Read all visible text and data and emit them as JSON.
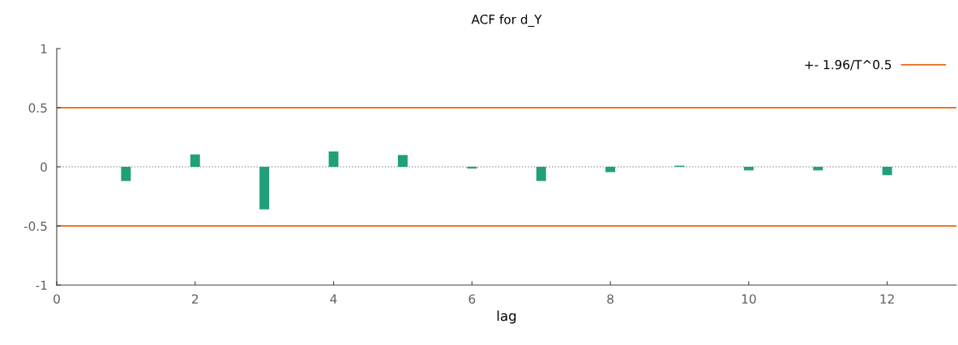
{
  "chart_data": {
    "type": "bar",
    "title": "ACF for d_Y",
    "xlabel": "lag",
    "x": [
      1,
      2,
      3,
      4,
      5,
      6,
      7,
      8,
      9,
      10,
      11,
      12
    ],
    "series": [
      {
        "color": "#1fa07a",
        "values": [
          -0.12,
          0.105,
          -0.36,
          0.13,
          0.1,
          -0.015,
          -0.12,
          -0.045,
          0.01,
          -0.03,
          -0.03,
          -0.07
        ]
      }
    ],
    "xlim": [
      0,
      13
    ],
    "xticks": [
      0,
      2,
      4,
      6,
      8,
      10,
      12
    ],
    "ylim": [
      -1,
      1
    ],
    "yticks": [
      -1,
      -0.5,
      0,
      0.5,
      1
    ],
    "ref_lines": [
      {
        "axis": "y",
        "value": 0.5,
        "label": "+- 1.96/T^0.5",
        "color": "#e8792e",
        "line_style": "solid"
      },
      {
        "axis": "y",
        "value": -0.5,
        "color": "#e8792e",
        "line_style": "solid"
      },
      {
        "axis": "y",
        "value": 0,
        "color": "#a0a0a0",
        "line_style": "dotted"
      }
    ],
    "legend": "top right",
    "grid": false
  }
}
